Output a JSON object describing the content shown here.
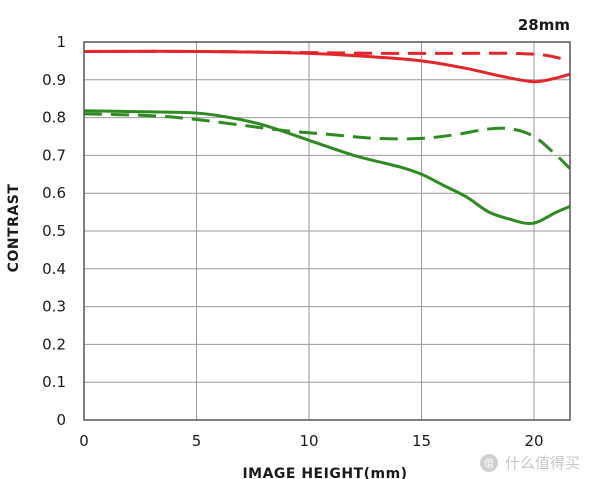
{
  "chart_data": {
    "type": "line",
    "title": "28mm",
    "xlabel": "IMAGE HEIGHT(mm)",
    "ylabel": "CONTRAST",
    "xlim": [
      0,
      21.6
    ],
    "ylim": [
      0,
      1
    ],
    "x_ticks": [
      "0",
      "5",
      "10",
      "15",
      "20"
    ],
    "x_tick_values": [
      0,
      5,
      10,
      15,
      20
    ],
    "y_ticks": [
      "0",
      "0.1",
      "0.2",
      "0.3",
      "0.4",
      "0.5",
      "0.6",
      "0.7",
      "0.8",
      "0.9",
      "1"
    ],
    "y_tick_values": [
      0,
      0.1,
      0.2,
      0.3,
      0.4,
      0.5,
      0.6,
      0.7,
      0.8,
      0.9,
      1.0
    ],
    "grid": true,
    "legend": "none",
    "series": [
      {
        "color": "#e3262b",
        "dash": "solid",
        "x": [
          0,
          5,
          10,
          13,
          15,
          17,
          18.5,
          20,
          21,
          21.6
        ],
        "y": [
          0.975,
          0.975,
          0.97,
          0.96,
          0.95,
          0.93,
          0.91,
          0.895,
          0.905,
          0.915
        ]
      },
      {
        "color": "#e3262b",
        "dash": "dashed",
        "x": [
          0,
          5,
          10,
          13,
          15,
          17,
          19,
          20.5,
          21.6
        ],
        "y": [
          0.975,
          0.975,
          0.972,
          0.97,
          0.97,
          0.97,
          0.97,
          0.965,
          0.95
        ]
      },
      {
        "color": "#2e8b22",
        "dash": "solid",
        "x": [
          0,
          3,
          5,
          6.5,
          8,
          10,
          12,
          14,
          15,
          16,
          17,
          18,
          19,
          19.7,
          20.2,
          21,
          21.6
        ],
        "y": [
          0.818,
          0.815,
          0.812,
          0.8,
          0.78,
          0.74,
          0.7,
          0.67,
          0.65,
          0.62,
          0.59,
          0.55,
          0.53,
          0.52,
          0.525,
          0.55,
          0.565
        ]
      },
      {
        "color": "#2e8b22",
        "dash": "dashed",
        "x": [
          0,
          3,
          5,
          7,
          9,
          11,
          13,
          15,
          16.5,
          18,
          19,
          20,
          21,
          21.6
        ],
        "y": [
          0.81,
          0.805,
          0.795,
          0.78,
          0.765,
          0.755,
          0.745,
          0.745,
          0.755,
          0.77,
          0.77,
          0.75,
          0.7,
          0.665
        ]
      }
    ]
  },
  "watermark": {
    "text": "值 什么值得买",
    "icon": "smzdm-logo-icon"
  }
}
